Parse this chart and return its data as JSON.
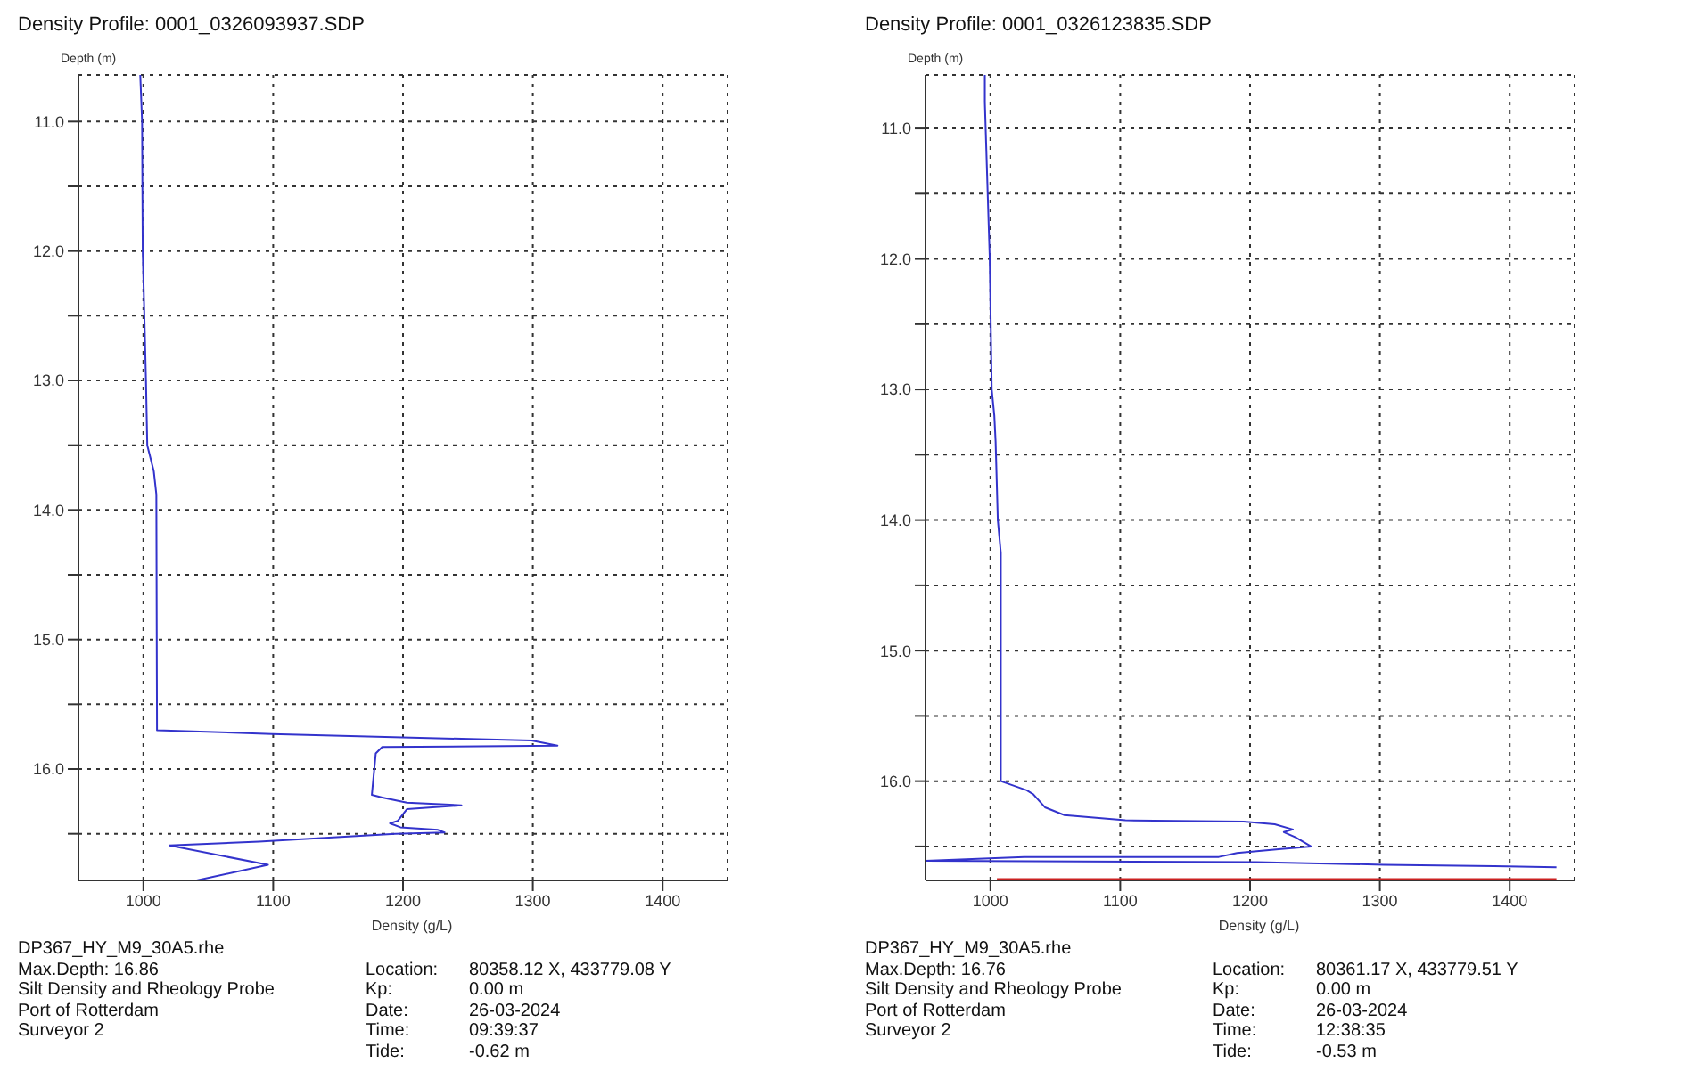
{
  "chart_data": [
    {
      "type": "line",
      "title": "Density Profile: 0001_0326093937.SDP",
      "xlabel": "Density (g/L)",
      "ylabel": "Depth (m)",
      "xlim": [
        950,
        1450
      ],
      "xticks": [
        1000,
        1100,
        1200,
        1300,
        1400
      ],
      "ylim": [
        16.86,
        10.64
      ],
      "yticks": [
        {
          "value": 11,
          "label": "11.0"
        },
        {
          "value": 11.5,
          "label": null
        },
        {
          "value": 12,
          "label": "12.0"
        },
        {
          "value": 12.5,
          "label": null
        },
        {
          "value": 13,
          "label": "13.0"
        },
        {
          "value": 13.5,
          "label": null
        },
        {
          "value": 14,
          "label": "14.0"
        },
        {
          "value": 14.5,
          "label": null
        },
        {
          "value": 15,
          "label": "15.0"
        },
        {
          "value": 15.5,
          "label": null
        },
        {
          "value": 16,
          "label": "16.0"
        },
        {
          "value": 16.5,
          "label": null
        }
      ],
      "grid": true,
      "marker": "none",
      "line_style": "solid",
      "series": [
        {
          "color": "#3333cc",
          "x": [
            997.6,
            999,
            999.5,
            1000.5,
            1002,
            1003,
            1008,
            1010,
            1010.5,
            1099,
            1299,
            1319,
            1184,
            1179,
            1176,
            1184,
            1203,
            1245,
            1203,
            1196,
            1190,
            1198,
            1227,
            1232,
            1194,
            1089,
            1020,
            1096,
            1041
          ],
          "values": [
            10.64,
            11.0,
            12.0,
            12.4,
            13.0,
            13.5,
            13.7,
            13.88,
            15.7,
            15.73,
            15.78,
            15.82,
            15.83,
            15.88,
            16.2,
            16.22,
            16.26,
            16.28,
            16.31,
            16.4,
            16.42,
            16.45,
            16.47,
            16.49,
            16.5,
            16.56,
            16.59,
            16.74,
            16.86
          ]
        }
      ],
      "annotations": [
        "DP367_HY_M9_30A5.rhe",
        "Max.Depth: 16.86",
        "Silt Density and Rheology Probe",
        "Port of Rotterdam",
        "Surveyor 2",
        "Location:",
        "80358.12 X, 433779.08 Y",
        "Kp:",
        "0.00 m",
        "Date:",
        "26-03-2024",
        "Time:",
        "09:39:37",
        "Tide:",
        "-0.62 m"
      ]
    },
    {
      "type": "line",
      "title": "Density Profile: 0001_0326123835.SDP",
      "xlabel": "Density (g/L)",
      "ylabel": "Depth (m)",
      "xlim": [
        950,
        1450
      ],
      "xticks": [
        1000,
        1100,
        1200,
        1300,
        1400
      ],
      "ylim": [
        16.76,
        10.59
      ],
      "yticks": [
        {
          "value": 11,
          "label": "11.0"
        },
        {
          "value": 11.5,
          "label": null
        },
        {
          "value": 12,
          "label": "12.0"
        },
        {
          "value": 12.5,
          "label": null
        },
        {
          "value": 13,
          "label": "13.0"
        },
        {
          "value": 13.5,
          "label": null
        },
        {
          "value": 14,
          "label": "14.0"
        },
        {
          "value": 14.5,
          "label": null
        },
        {
          "value": 15,
          "label": "15.0"
        },
        {
          "value": 15.5,
          "label": null
        },
        {
          "value": 16,
          "label": "16.0"
        },
        {
          "value": 16.5,
          "label": null
        }
      ],
      "grid": true,
      "marker": "none",
      "line_style": "solid",
      "series": [
        {
          "color": "#3333cc",
          "x": [
            995.7,
            995.7,
            997.6,
            999.5,
            1001,
            1003,
            1004,
            1005.7,
            1008,
            1008,
            1028,
            1033,
            1042,
            1057,
            1104,
            1195,
            1219,
            1233,
            1226,
            1235,
            1247,
            1224,
            1190,
            1176,
            1026,
            950,
            1205,
            1303,
            1388,
            1436
          ],
          "values": [
            10.59,
            10.8,
            11.4,
            12.0,
            13.0,
            13.2,
            13.4,
            14.0,
            14.25,
            16.0,
            16.07,
            16.1,
            16.2,
            16.26,
            16.3,
            16.31,
            16.33,
            16.37,
            16.39,
            16.43,
            16.5,
            16.52,
            16.55,
            16.58,
            16.58,
            16.61,
            16.62,
            16.64,
            16.65,
            16.66
          ]
        },
        {
          "color": "#cc2222",
          "x": [
            1005,
            1436
          ],
          "values": [
            16.75,
            16.75
          ]
        }
      ],
      "annotations": [
        "DP367_HY_M9_30A5.rhe",
        "Max.Depth: 16.76",
        "Silt Density and Rheology Probe",
        "Port of Rotterdam",
        "Surveyor 2",
        "Location:",
        "80361.17 X, 433779.51 Y",
        "Kp:",
        "0.00 m",
        "Date:",
        "26-03-2024",
        "Time:",
        "12:38:35",
        "Tide:",
        "-0.53 m"
      ]
    }
  ]
}
